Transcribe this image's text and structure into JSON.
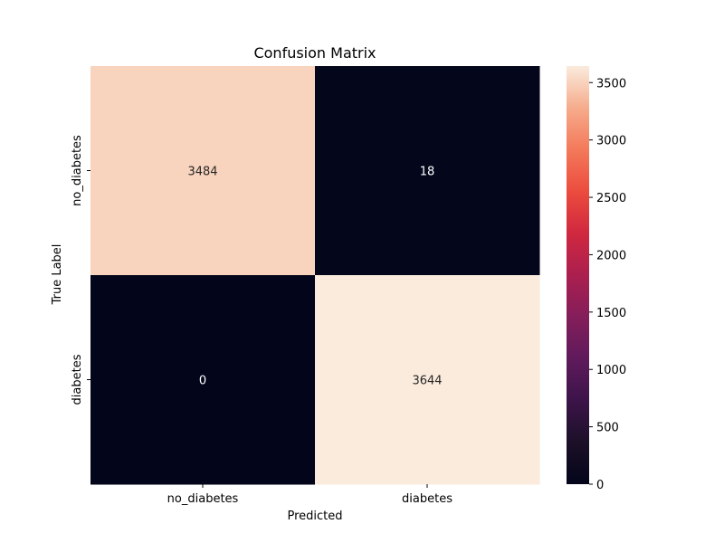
{
  "chart_data": {
    "type": "heatmap",
    "title": "Confusion Matrix",
    "xlabel": "Predicted",
    "ylabel": "True Label",
    "x_categories": [
      "no_diabetes",
      "diabetes"
    ],
    "y_categories": [
      "no_diabetes",
      "diabetes"
    ],
    "values": [
      [
        3484,
        18
      ],
      [
        0,
        3644
      ]
    ],
    "colorbar": {
      "ticks": [
        0,
        500,
        1000,
        1500,
        2000,
        2500,
        3000,
        3500
      ],
      "range": [
        0,
        3644
      ]
    },
    "colormap": "rocket",
    "grid": false
  }
}
